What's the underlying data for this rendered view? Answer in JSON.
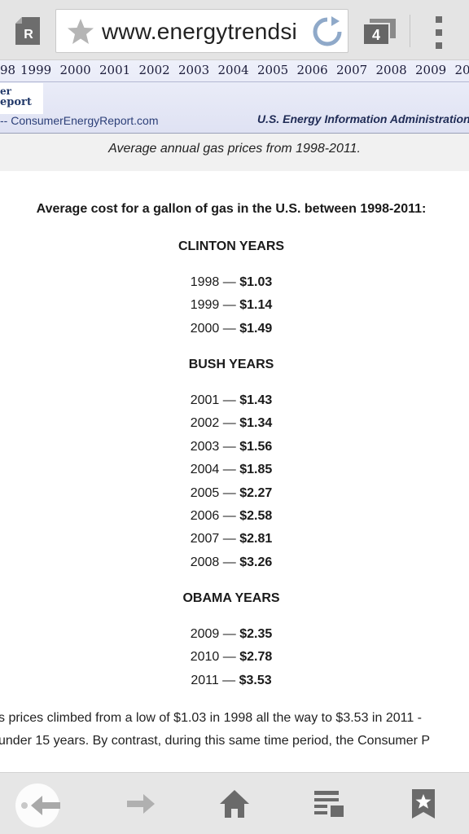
{
  "browser": {
    "url": "www.energytrendsi",
    "tab_count": "4",
    "reader_label": "R"
  },
  "banner": {
    "years": [
      "98",
      "1999",
      "2000",
      "2001",
      "2002",
      "2003",
      "2004",
      "2005",
      "2006",
      "2007",
      "2008",
      "2009",
      "20"
    ],
    "logo_line1": "er",
    "logo_line2": "eport",
    "source_left": "-- ConsumerEnergyReport.com",
    "source_right": "U.S. Energy Information  Administration"
  },
  "caption": "Average annual gas prices from 1998-2011.",
  "article": {
    "heading": "Average cost for a gallon of gas in the U.S. between 1998-2011:",
    "sections": [
      {
        "title": "CLINTON YEARS",
        "rows": [
          {
            "year": "1998",
            "sep": " — ",
            "price": "$1.03"
          },
          {
            "year": "1999",
            "sep": " — ",
            "price": "$1.14"
          },
          {
            "year": "2000",
            "sep": " — ",
            "price": "$1.49"
          }
        ]
      },
      {
        "title": "BUSH YEARS",
        "rows": [
          {
            "year": "2001",
            "sep": " — ",
            "price": "$1.43"
          },
          {
            "year": "2002",
            "sep": " — ",
            "price": "$1.34"
          },
          {
            "year": "2003",
            "sep": " — ",
            "price": "$1.56"
          },
          {
            "year": "2004",
            "sep": " — ",
            "price": "$1.85"
          },
          {
            "year": "2005",
            "sep": " — ",
            "price": "$2.27"
          },
          {
            "year": "2006",
            "sep": " — ",
            "price": "$2.58"
          },
          {
            "year": "2007",
            "sep": " — ",
            "price": "$2.81"
          },
          {
            "year": "2008",
            "sep": " — ",
            "price": "$3.26"
          }
        ]
      },
      {
        "title": "OBAMA YEARS",
        "rows": [
          {
            "year": "2009",
            "sep": " — ",
            "price": "$2.35"
          },
          {
            "year": "2010",
            "sep": " — ",
            "price": "$2.78"
          },
          {
            "year": "2011",
            "sep": " — ",
            "price": "$3.53"
          }
        ]
      }
    ],
    "paragraph_line1": "s prices climbed from a low of $1.03 in 1998 all the way to $3.53 in 2011 -",
    "paragraph_line2": "under 15 years. By contrast, during this same time period, the Consumer P"
  },
  "bottom_nav": {
    "icons": [
      "back-arrow-icon",
      "forward-arrow-icon",
      "home-icon",
      "reading-list-icon",
      "bookmark-star-icon"
    ]
  },
  "colors": {
    "toolbar": "#e4e4e4",
    "icon_gray": "#707070",
    "reload_blue": "#8fa9c9",
    "banner_text": "#2c3f78"
  }
}
